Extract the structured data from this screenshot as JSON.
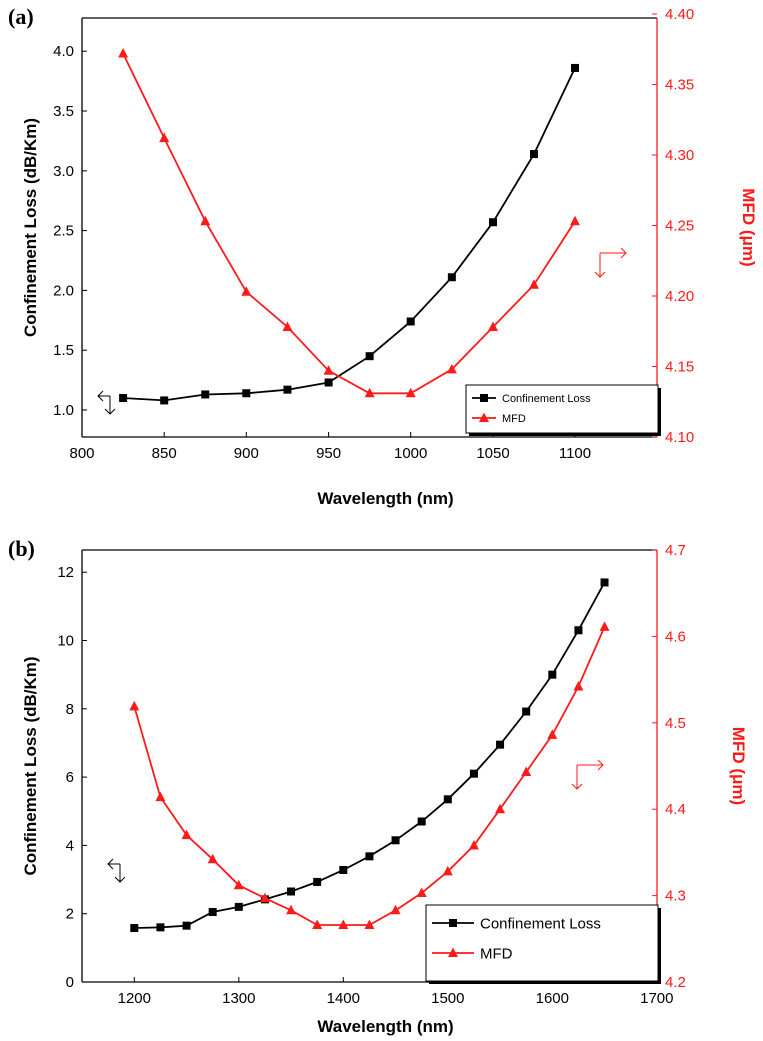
{
  "colors": {
    "loss": "#000000",
    "mfd": "#ff1a1a"
  },
  "chart_data": [
    {
      "type": "line",
      "panel_label": "(a)",
      "xlabel": "Wavelength (nm)",
      "ylabel": "Confinement Loss (dB/Km)",
      "y2label": "MFD (μm)",
      "xlim": [
        800,
        1125
      ],
      "ylim": [
        0.8,
        4.2
      ],
      "y2lim": [
        4.1,
        4.4
      ],
      "xticks": [
        "800",
        "850",
        "900",
        "950",
        "1000",
        "1050",
        "1100"
      ],
      "yticks": [
        "1.0",
        "1.5",
        "2.0",
        "2.5",
        "3.0",
        "3.5",
        "4.0"
      ],
      "y2ticks": [
        "4.10",
        "4.15",
        "4.20",
        "4.25",
        "4.30",
        "4.35",
        "4.40"
      ],
      "legend_position": "bottom-right",
      "series": [
        {
          "name": "Confinement Loss",
          "axis": "left",
          "marker": "square",
          "x": [
            825,
            850,
            875,
            900,
            925,
            950,
            975,
            1000,
            1025,
            1050,
            1075,
            1100
          ],
          "values": [
            1.1,
            1.08,
            1.13,
            1.14,
            1.17,
            1.23,
            1.45,
            1.74,
            2.11,
            2.57,
            3.14,
            3.86
          ]
        },
        {
          "name": "MFD",
          "axis": "right",
          "marker": "triangle",
          "x": [
            825,
            850,
            875,
            900,
            925,
            950,
            975,
            1000,
            1025,
            1050,
            1075,
            1100
          ],
          "values": [
            4.372,
            4.312,
            4.253,
            4.203,
            4.178,
            4.147,
            4.131,
            4.131,
            4.148,
            4.178,
            4.208,
            4.253
          ]
        }
      ]
    },
    {
      "type": "line",
      "panel_label": "(b)",
      "xlabel": "Wavelength (nm)",
      "ylabel": "Confinement Loss (dB/Km)",
      "y2label": "MFD (μm)",
      "xlim": [
        1150,
        1700
      ],
      "ylim": [
        0,
        13
      ],
      "y2lim": [
        4.2,
        4.7
      ],
      "xticks": [
        "1200",
        "1300",
        "1400",
        "1500",
        "1600",
        "1700"
      ],
      "yticks": [
        "0",
        "2",
        "4",
        "6",
        "8",
        "10",
        "12"
      ],
      "y2ticks": [
        "4.2",
        "4.3",
        "4.4",
        "4.5",
        "4.6",
        "4.7"
      ],
      "legend_position": "bottom-right",
      "series": [
        {
          "name": "Confinement Loss",
          "axis": "left",
          "marker": "square",
          "x": [
            1200,
            1225,
            1250,
            1275,
            1300,
            1325,
            1350,
            1375,
            1400,
            1425,
            1450,
            1475,
            1500,
            1525,
            1550,
            1575,
            1600,
            1625,
            1650
          ],
          "values": [
            1.58,
            1.6,
            1.65,
            2.05,
            2.2,
            2.42,
            2.65,
            2.93,
            3.28,
            3.68,
            4.15,
            4.7,
            5.35,
            6.1,
            6.95,
            7.92,
            9.0,
            10.3,
            11.7
          ]
        },
        {
          "name": "MFD",
          "axis": "right",
          "marker": "triangle",
          "x": [
            1200,
            1225,
            1250,
            1275,
            1300,
            1325,
            1350,
            1375,
            1400,
            1425,
            1450,
            1475,
            1500,
            1525,
            1550,
            1575,
            1600,
            1625,
            1650
          ],
          "values": [
            4.519,
            4.414,
            4.37,
            4.342,
            4.312,
            4.297,
            4.283,
            4.266,
            4.266,
            4.266,
            4.283,
            4.303,
            4.328,
            4.358,
            4.4,
            4.443,
            4.486,
            4.542,
            4.611
          ]
        }
      ]
    }
  ]
}
